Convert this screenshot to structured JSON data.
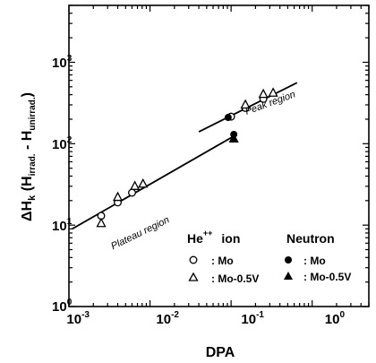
{
  "chart_data": {
    "type": "scatter",
    "xscale": "log",
    "yscale": "log",
    "xlim": [
      0.001,
      5
    ],
    "ylim": [
      1,
      5000
    ],
    "xlabel": "DPA",
    "ylabel": {
      "prefix": "ΔH",
      "sub_k": "k",
      "open": " (H",
      "sub_irrad": "irrad.",
      "minus": " - H",
      "sub_unirrad": "unirrad.",
      "close": ")"
    },
    "x_ticks": [
      {
        "base": "10",
        "exp": "-3",
        "value": 0.001
      },
      {
        "base": "10",
        "exp": "-2",
        "value": 0.01
      },
      {
        "base": "10",
        "exp": "-1",
        "value": 0.1
      },
      {
        "base": "10",
        "exp": "0",
        "value": 1
      }
    ],
    "y_ticks": [
      {
        "base": "10",
        "exp": "0",
        "value": 1
      },
      {
        "base": "10",
        "exp": "1",
        "value": 10
      },
      {
        "base": "10",
        "exp": "2",
        "value": 100
      },
      {
        "base": "10",
        "exp": "3",
        "value": 1000
      }
    ],
    "grid": false,
    "annotations": [
      {
        "text": "Peak region",
        "x": 0.1,
        "y": 430,
        "angle": -20
      },
      {
        "text": "Plateau region",
        "x": 0.0033,
        "y": 8.5,
        "angle": -26
      }
    ],
    "series": [
      {
        "name": "He++ ion : Mo",
        "marker": "circle-open",
        "x": [
          0.0025,
          0.004,
          0.006,
          0.1,
          0.15,
          0.25
        ],
        "y": [
          13,
          19,
          25,
          215,
          275,
          355
        ]
      },
      {
        "name": "He++ ion : Mo-0.5V",
        "marker": "triangle-open",
        "x": [
          0.0025,
          0.004,
          0.0065,
          0.0082,
          0.15,
          0.25,
          0.33
        ],
        "y": [
          10.5,
          22,
          30,
          32,
          300,
          405,
          420
        ]
      },
      {
        "name": "Neutron : Mo",
        "marker": "circle-filled",
        "x": [
          0.092,
          0.108
        ],
        "y": [
          210,
          130
        ]
      },
      {
        "name": "Neutron : Mo-0.5V",
        "marker": "triangle-filled",
        "x": [
          0.108
        ],
        "y": [
          115
        ]
      }
    ],
    "fit_lines": [
      {
        "region": "plateau",
        "x": [
          0.0011,
          0.11
        ],
        "y": [
          9,
          125
        ]
      },
      {
        "region": "peak",
        "x": [
          0.04,
          0.65
        ],
        "y": [
          140,
          560
        ]
      }
    ],
    "legend": {
      "placement": "bottom-right",
      "he_head": "He",
      "he_sup": "++",
      "he_word": "ion",
      "neutron_head": "Neutron",
      "he_mo": ": Mo",
      "he_mov": ": Mo-0.5V",
      "n_mo": ": Mo",
      "n_mov": ": Mo-0.5V"
    }
  }
}
